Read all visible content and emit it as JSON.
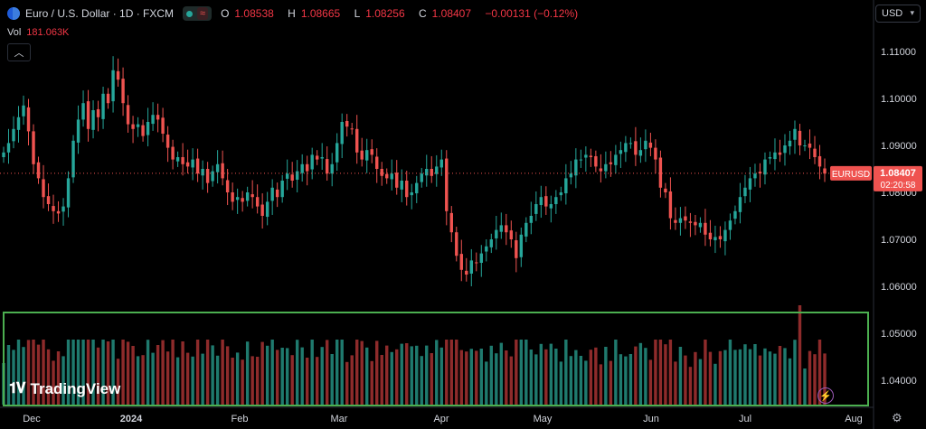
{
  "header": {
    "title": "Euro / U.S. Dollar · 1D · FXCM",
    "wave_icon": "≈",
    "ohlc": [
      {
        "k": "O",
        "v": "1.08538"
      },
      {
        "k": "H",
        "v": "1.08665"
      },
      {
        "k": "L",
        "v": "1.08256"
      },
      {
        "k": "C",
        "v": "1.08407"
      },
      {
        "k": "",
        "v": "−0.00131 (−0.12%)"
      }
    ]
  },
  "volume": {
    "label": "Vol",
    "value": "181.063K"
  },
  "currency_button": "USD",
  "branding": "TradingView",
  "colors": {
    "up": "#26a69a",
    "down": "#ef5350",
    "vol_up": "#1f7a6e",
    "vol_down": "#8e2b2b",
    "highlight": "#4caf50"
  },
  "chart_data": {
    "type": "candlestick",
    "symbol": "EURUSD",
    "y_ticks": [
      "1.11000",
      "1.10000",
      "1.09000",
      "1.08000",
      "1.07000",
      "1.06000",
      "1.05000",
      "1.04000"
    ],
    "y_tick_values": [
      1.11,
      1.1,
      1.09,
      1.08,
      1.07,
      1.06,
      1.05,
      1.04
    ],
    "x_ticks": [
      "Dec",
      "2024",
      "Feb",
      "Mar",
      "Apr",
      "May",
      "Jun",
      "Jul",
      "Aug"
    ],
    "last_price": "1.08407",
    "countdown": "02:20:58",
    "price_range": [
      1.035,
      1.118
    ],
    "close": [
      1.0885,
      1.0905,
      1.0935,
      1.096,
      1.0985,
      1.093,
      1.086,
      1.083,
      1.079,
      1.0775,
      1.076,
      1.0755,
      1.077,
      1.083,
      1.091,
      1.0955,
      1.099,
      1.0935,
      1.0975,
      1.096,
      1.101,
      1.099,
      1.106,
      1.104,
      1.099,
      1.0945,
      1.0935,
      1.0945,
      1.092,
      1.095,
      1.0965,
      1.0955,
      1.0925,
      1.0895,
      1.087,
      1.0875,
      1.086,
      1.0855,
      1.087,
      1.084,
      1.085,
      1.082,
      1.0845,
      1.086,
      1.083,
      1.08,
      1.078,
      1.079,
      1.078,
      1.08,
      1.079,
      1.077,
      1.075,
      1.078,
      1.081,
      1.079,
      1.0825,
      1.084,
      1.0825,
      1.0845,
      1.086,
      1.0845,
      1.088,
      1.087,
      1.0875,
      1.084,
      1.086,
      1.0905,
      1.095,
      1.094,
      1.0935,
      1.0885,
      1.087,
      1.089,
      1.088,
      1.085,
      1.0835,
      1.083,
      1.084,
      1.081,
      1.0825,
      1.079,
      1.08,
      1.082,
      1.084,
      1.085,
      1.0835,
      1.0855,
      1.087,
      1.076,
      1.0715,
      1.0665,
      1.0635,
      1.0625,
      1.0655,
      1.065,
      1.067,
      1.0685,
      1.07,
      1.072,
      1.073,
      1.0715,
      1.07,
      1.066,
      1.071,
      1.0735,
      1.075,
      1.0775,
      1.079,
      1.077,
      1.0775,
      1.079,
      1.08,
      1.083,
      1.084,
      1.087,
      1.087,
      1.088,
      1.0875,
      1.0855,
      1.0845,
      1.086,
      1.086,
      1.088,
      1.089,
      1.0905,
      1.0905,
      1.088,
      1.089,
      1.091,
      1.0895,
      1.087,
      1.081,
      1.08,
      1.0745,
      1.0735,
      1.0745,
      1.074,
      1.0735,
      1.073,
      1.0735,
      1.071,
      1.07,
      1.0705,
      1.07,
      1.072,
      1.074,
      1.076,
      1.079,
      1.081,
      1.083,
      1.084,
      1.084,
      1.087,
      1.0875,
      1.0885,
      1.088,
      1.09,
      1.091,
      1.0935,
      1.09,
      1.09,
      1.0895,
      1.0875,
      1.0855,
      1.084
    ]
  }
}
